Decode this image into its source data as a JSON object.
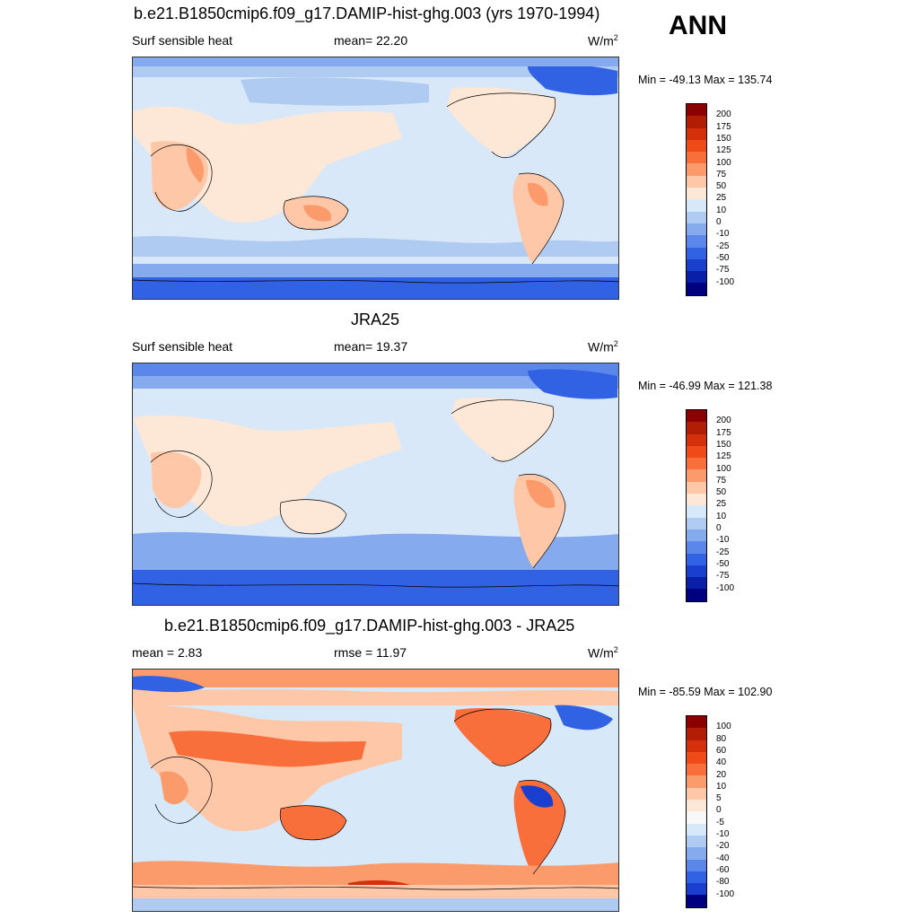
{
  "season_label": "ANN",
  "panels": [
    {
      "title": "b.e21.B1850cmip6.f09_g17.DAMIP-hist-ghg.003 (yrs 1970-1994)",
      "left_label": "Surf sensible heat",
      "mid_label": "mean=  22.20",
      "units_base": "W/m",
      "units_exp": "2",
      "minmax": "Min = -49.13 Max = 135.74",
      "colorbar_labels": [
        "200",
        "175",
        "150",
        "125",
        "100",
        "75",
        "50",
        "25",
        "10",
        "0",
        "-10",
        "-25",
        "-50",
        "-75",
        "-100"
      ],
      "colors": [
        "#8b0000",
        "#b11d05",
        "#d4300c",
        "#f04a18",
        "#f86f3c",
        "#fb9b6c",
        "#fdc7a8",
        "#fde7d6",
        "#d7e9f9",
        "#b0cbf2",
        "#86aaee",
        "#5b86ea",
        "#3162e4",
        "#1a3fcf",
        "#0a1fa8",
        "#000080"
      ]
    },
    {
      "title": "JRA25",
      "left_label": "Surf sensible heat",
      "mid_label": "mean=  19.37",
      "units_base": "W/m",
      "units_exp": "2",
      "minmax": "Min = -46.99 Max = 121.38",
      "colorbar_labels": [
        "200",
        "175",
        "150",
        "125",
        "100",
        "75",
        "50",
        "25",
        "10",
        "0",
        "-10",
        "-25",
        "-50",
        "-75",
        "-100"
      ],
      "colors": [
        "#8b0000",
        "#b11d05",
        "#d4300c",
        "#f04a18",
        "#f86f3c",
        "#fb9b6c",
        "#fdc7a8",
        "#fde7d6",
        "#d7e9f9",
        "#b0cbf2",
        "#86aaee",
        "#5b86ea",
        "#3162e4",
        "#1a3fcf",
        "#0a1fa8",
        "#000080"
      ]
    },
    {
      "title": "b.e21.B1850cmip6.f09_g17.DAMIP-hist-ghg.003 - JRA25",
      "left_label": "mean =   2.83",
      "mid_label": "rmse =   11.97",
      "units_base": "W/m",
      "units_exp": "2",
      "minmax": "Min = -85.59 Max = 102.90",
      "colorbar_labels": [
        "100",
        "80",
        "60",
        "40",
        "20",
        "10",
        "5",
        "0",
        "-5",
        "-10",
        "-20",
        "-40",
        "-60",
        "-80",
        "-100"
      ],
      "colors": [
        "#8b0000",
        "#b11d05",
        "#d4300c",
        "#f04a18",
        "#f86f3c",
        "#fb9b6c",
        "#fdc7a8",
        "#fde7d6",
        "#f8f8f8",
        "#d7e9f9",
        "#b0cbf2",
        "#86aaee",
        "#5b86ea",
        "#3162e4",
        "#1a3fcf",
        "#000080"
      ]
    }
  ]
}
